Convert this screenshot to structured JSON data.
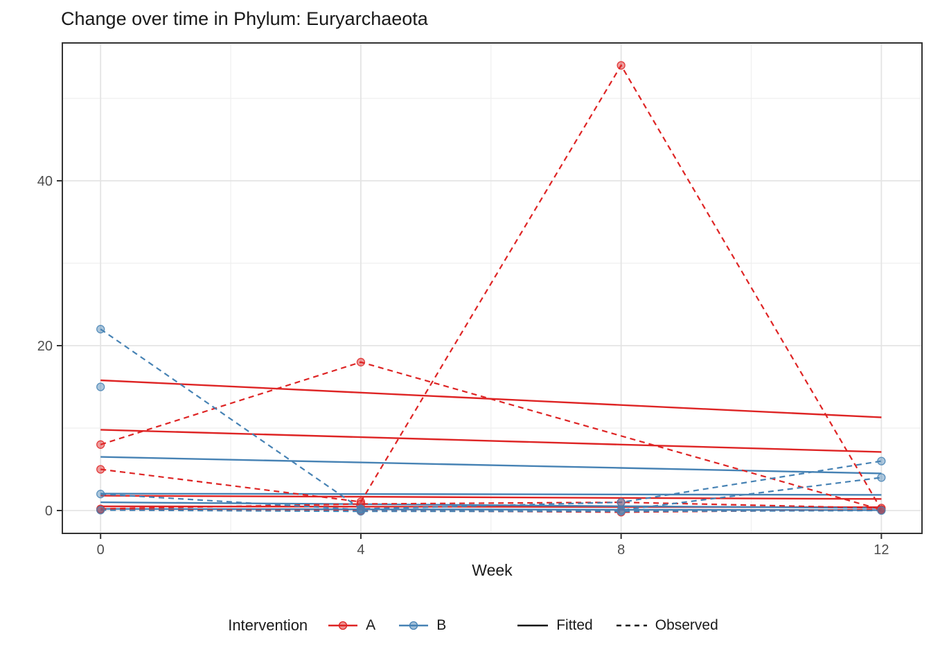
{
  "chart_data": {
    "type": "line",
    "title": "Change over time in Phylum: Euryarchaeota",
    "xlabel": "Week",
    "ylabel": "",
    "x": [
      0,
      4,
      8,
      12
    ],
    "x_minor": [
      2,
      6,
      10
    ],
    "y_ticks": [
      0,
      20,
      40
    ],
    "y_minor": [
      10,
      30,
      50
    ],
    "xlim": [
      -0.56,
      12.63
    ],
    "ylim": [
      -2.77,
      56.7
    ],
    "grid": true,
    "legend_position": "bottom",
    "legend": {
      "title": "Intervention",
      "groups": [
        {
          "label": "A",
          "color": "#DE2424"
        },
        {
          "label": "B",
          "color": "#4682B4"
        }
      ],
      "linetypes": [
        {
          "label": "Fitted",
          "style": "solid"
        },
        {
          "label": "Observed",
          "style": "dashed"
        }
      ]
    },
    "series": [
      {
        "name": "A-fitted-1",
        "group": "A",
        "linetype": "fitted",
        "values": [
          15.8,
          14.3,
          12.8,
          11.3
        ],
        "points": false
      },
      {
        "name": "A-fitted-2",
        "group": "A",
        "linetype": "fitted",
        "values": [
          9.8,
          8.9,
          8.0,
          7.1
        ],
        "points": false
      },
      {
        "name": "A-fitted-3",
        "group": "A",
        "linetype": "fitted",
        "values": [
          1.8,
          1.67,
          1.53,
          1.4
        ],
        "points": false
      },
      {
        "name": "A-fitted-4",
        "group": "A",
        "linetype": "fitted",
        "values": [
          0.5,
          0.47,
          0.43,
          0.4
        ],
        "points": false
      },
      {
        "name": "B-fitted-1",
        "group": "B",
        "linetype": "fitted",
        "values": [
          6.5,
          5.83,
          5.17,
          4.5
        ],
        "points": false
      },
      {
        "name": "B-fitted-2",
        "group": "B",
        "linetype": "fitted",
        "values": [
          2.05,
          2.0,
          1.95,
          1.9
        ],
        "points": false
      },
      {
        "name": "B-fitted-3",
        "group": "B",
        "linetype": "fitted",
        "values": [
          1.0,
          0.77,
          0.53,
          0.3
        ],
        "points": false
      },
      {
        "name": "B-fitted-4",
        "group": "B",
        "linetype": "fitted",
        "values": [
          0.2,
          0.15,
          0.1,
          0.05
        ],
        "points": false
      },
      {
        "name": "A-observed-1",
        "group": "A",
        "linetype": "observed",
        "values": [
          8,
          18,
          null,
          0.1
        ],
        "points": true
      },
      {
        "name": "A-observed-2",
        "group": "A",
        "linetype": "observed",
        "values": [
          5,
          1.05,
          54,
          0.1
        ],
        "points": true
      },
      {
        "name": "A-observed-3",
        "group": "A",
        "linetype": "observed",
        "values": [
          0.2,
          0.8,
          1.0,
          0.3
        ],
        "points": true
      },
      {
        "name": "A-observed-4",
        "group": "A",
        "linetype": "observed",
        "values": [
          0.1,
          0.0,
          -0.2,
          0.1
        ],
        "points": true
      },
      {
        "name": "B-observed-1",
        "group": "B",
        "linetype": "observed",
        "values": [
          22,
          0.2,
          1.0,
          6
        ],
        "points": true
      },
      {
        "name": "B-observed-2",
        "group": "B",
        "linetype": "observed",
        "values": [
          2,
          0.1,
          0.05,
          4
        ],
        "points": true
      },
      {
        "name": "B-observed-3",
        "group": "B",
        "linetype": "observed",
        "values": [
          15,
          null,
          null,
          null
        ],
        "points": true
      },
      {
        "name": "B-observed-4",
        "group": "B",
        "linetype": "observed",
        "values": [
          0.05,
          -0.1,
          -0.1,
          0.0
        ],
        "points": true
      }
    ],
    "colors": {
      "A": "#DE2424",
      "B": "#4682B4",
      "grid_major": "#E4E4E4",
      "grid_minor": "#EFEFEF",
      "panel_border": "#333333",
      "tick_text": "#4D4D4D",
      "legend_line": "#111111"
    }
  }
}
